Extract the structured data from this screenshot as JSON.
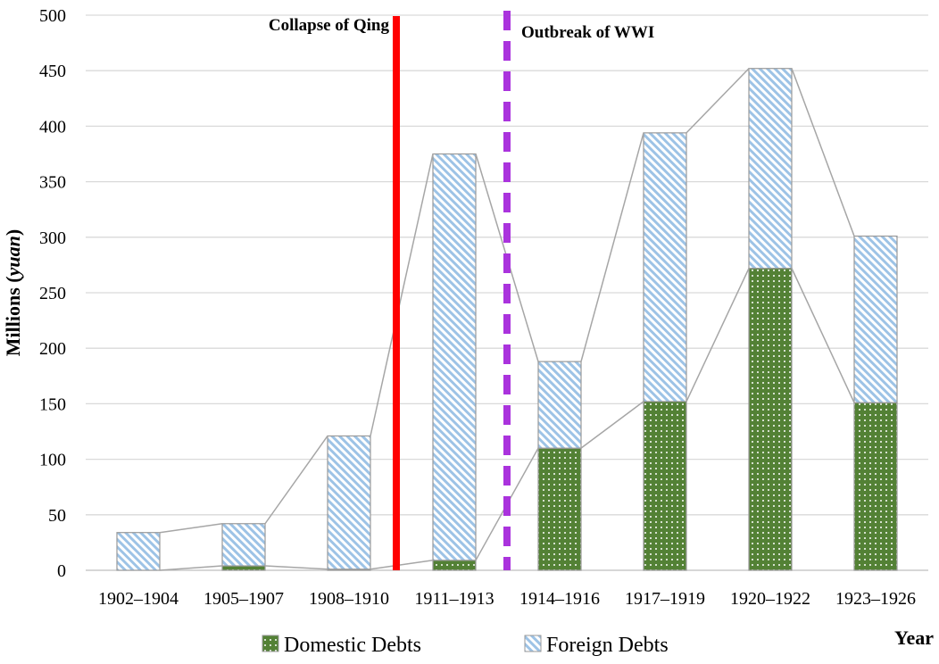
{
  "chart_data": {
    "type": "bar",
    "stacked": true,
    "title": "",
    "xlabel": "Year",
    "ylabel_main": "Millions (",
    "ylabel_italic": "yuan",
    "ylabel_close": ")",
    "ylim": [
      0,
      500
    ],
    "yticks": [
      0,
      50,
      100,
      150,
      200,
      250,
      300,
      350,
      400,
      450,
      500
    ],
    "grid": true,
    "legend_position": "bottom",
    "categories": [
      "1902–1904",
      "1905–1907",
      "1908–1910",
      "1911–1913",
      "1914–1916",
      "1917–1919",
      "1920–1922",
      "1923–1926"
    ],
    "series": [
      {
        "name": "Domestic Debts",
        "values": [
          0,
          4,
          1,
          9,
          110,
          152,
          272,
          151
        ],
        "color": "#538135",
        "pattern": "dots"
      },
      {
        "name": "Foreign Debts",
        "values": [
          34,
          38,
          120,
          366,
          78,
          242,
          180,
          150
        ],
        "color": "#9DC3E6",
        "pattern": "diagonal-stripes"
      }
    ],
    "annotations": [
      {
        "text": "Collapse of Qing",
        "style": "solid",
        "color": "#FF0000"
      },
      {
        "text": "Outbreak of WWI",
        "style": "dashed",
        "color": "#AA33DD"
      }
    ]
  }
}
